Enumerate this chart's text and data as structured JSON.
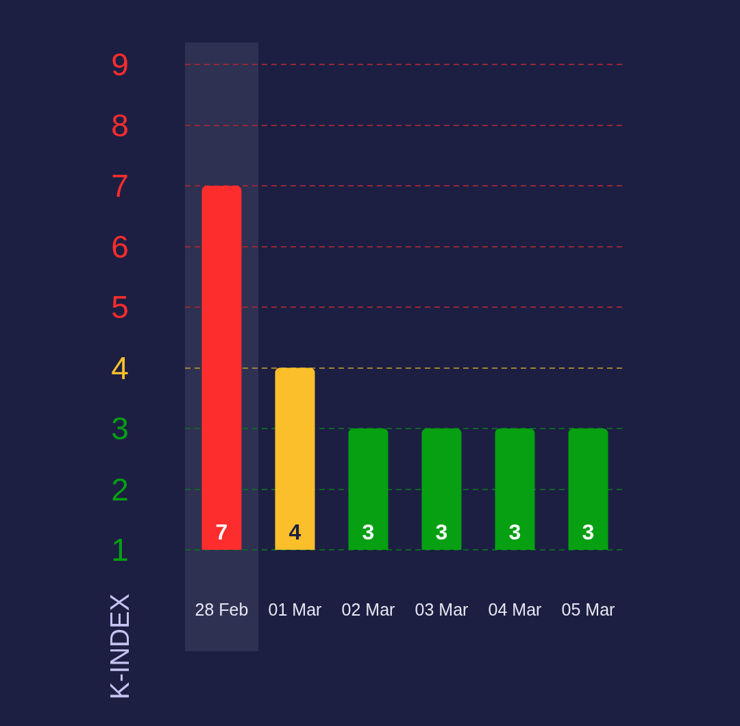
{
  "chart_data": {
    "type": "bar",
    "ylabel": "K-INDEX",
    "categories": [
      "28 Feb",
      "01 Mar",
      "02 Mar",
      "03 Mar",
      "04 Mar",
      "05 Mar"
    ],
    "values": [
      7,
      4,
      3,
      3,
      3,
      3
    ],
    "colors": [
      "#fd2d2d",
      "#fbbf2b",
      "#06a012",
      "#06a012",
      "#06a012",
      "#06a012"
    ],
    "ylim": [
      1,
      9
    ],
    "yticks": [
      1,
      2,
      3,
      4,
      5,
      6,
      7,
      8,
      9
    ],
    "grid": "y",
    "data_labels": true,
    "ref_lines": [
      {
        "axis": "y",
        "value": 4,
        "color": "#a08236",
        "line_style": "dashed"
      }
    ],
    "bands": [
      {
        "axis": "x",
        "from": "28 Feb",
        "to": "28 Feb",
        "color": "#2e3152"
      }
    ]
  }
}
